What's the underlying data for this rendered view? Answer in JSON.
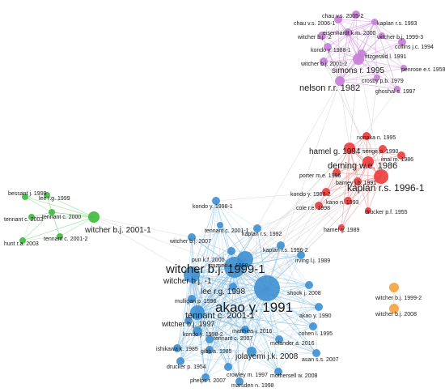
{
  "clusters": {
    "purple": {
      "color": "#c77dd6",
      "edge": "#d9a8e3"
    },
    "red": {
      "color": "#ee3b3b",
      "edge": "#f29a9a"
    },
    "green": {
      "color": "#3dba3d",
      "edge": "#8fdc8f"
    },
    "blue": {
      "color": "#3d8fd1",
      "edge": "#8fc3e8"
    },
    "orange": {
      "color": "#f4a23c",
      "edge": "#f6c98a"
    },
    "bridge": {
      "color": "#bbbbbb",
      "edge": "#cfcfcf"
    }
  },
  "nodes": [
    {
      "id": "chau2005",
      "label": "chau v.s. 2005-2",
      "cluster": "purple"
    },
    {
      "id": "chau2006",
      "label": "chau v.s. 2006-1",
      "cluster": "purple"
    },
    {
      "id": "kaplan1993",
      "label": "kaplan r.s. 1993",
      "cluster": "purple"
    },
    {
      "id": "witcher2p",
      "label": "witcher b.j. -2",
      "cluster": "purple"
    },
    {
      "id": "eisenhardt",
      "label": "eisenhardt k.m. 2000",
      "cluster": "purple"
    },
    {
      "id": "witcher1999_3",
      "label": "witcher b.j. 1999-3",
      "cluster": "purple"
    },
    {
      "id": "collins",
      "label": "collins j.c. 1994",
      "cluster": "purple"
    },
    {
      "id": "kondo1988",
      "label": "kondo y. 1988-1",
      "cluster": "purple"
    },
    {
      "id": "fitzgerald",
      "label": "fitzgerald l. 1991",
      "cluster": "purple"
    },
    {
      "id": "witcher2001_2p",
      "label": "witcher b.j. 2001-2",
      "cluster": "purple"
    },
    {
      "id": "penrose",
      "label": "penrose e.t. 1959",
      "cluster": "purple"
    },
    {
      "id": "simons",
      "label": "simons r. 1995",
      "cluster": "purple"
    },
    {
      "id": "crosby",
      "label": "crosby p.b. 1979",
      "cluster": "purple"
    },
    {
      "id": "nelson",
      "label": "nelson r.r. 1982",
      "cluster": "purple"
    },
    {
      "id": "ghoshal",
      "label": "ghoshal s. 1997",
      "cluster": "purple"
    },
    {
      "id": "nonaka",
      "label": "nonaka n. 1995",
      "cluster": "red"
    },
    {
      "id": "hamel1994",
      "label": "hamel g. 1994",
      "cluster": "red"
    },
    {
      "id": "senge",
      "label": "senge p. 1990",
      "cluster": "red"
    },
    {
      "id": "imai",
      "label": "imai m. 1986",
      "cluster": "red"
    },
    {
      "id": "deming",
      "label": "deming w.e. 1986",
      "cluster": "red"
    },
    {
      "id": "porter",
      "label": "porter m.e. 1996",
      "cluster": "red"
    },
    {
      "id": "kaplan1996",
      "label": "kaplan r.s. 1996-1",
      "cluster": "red"
    },
    {
      "id": "barney",
      "label": "barney j.b. 1991",
      "cluster": "red"
    },
    {
      "id": "kondo1988_2",
      "label": "kondo y. 1988-2",
      "cluster": "red"
    },
    {
      "id": "kano",
      "label": "kano n. 1993",
      "cluster": "red"
    },
    {
      "id": "cole",
      "label": "cole r.e. 1998",
      "cluster": "red"
    },
    {
      "id": "drucker1955",
      "label": "drucker p.f. 1955",
      "cluster": "red"
    },
    {
      "id": "hamel1989",
      "label": "hamel g. 1989",
      "cluster": "red"
    },
    {
      "id": "bessant",
      "label": "bessant j. 1999",
      "cluster": "green"
    },
    {
      "id": "lee1999",
      "label": "lee r.g. 1999",
      "cluster": "green"
    },
    {
      "id": "tennant2003",
      "label": "tennant c. 2003",
      "cluster": "green"
    },
    {
      "id": "tennant2000",
      "label": "tennant c. 2000",
      "cluster": "green"
    },
    {
      "id": "witcher2001_1",
      "label": "witcher b.j. 2001-1",
      "cluster": "green"
    },
    {
      "id": "tennant2001_2",
      "label": "tennant c. 2001-2",
      "cluster": "green"
    },
    {
      "id": "hunt",
      "label": "hunt r.a. 2003",
      "cluster": "green"
    },
    {
      "id": "kondo1998",
      "label": "kondo y. 1998-1",
      "cluster": "blue"
    },
    {
      "id": "witcher2007",
      "label": "witcher b.j. 2007",
      "cluster": "blue"
    },
    {
      "id": "tennant2001_1s",
      "label": "tennant c. 2001-1",
      "cluster": "blue"
    },
    {
      "id": "kaplan1992",
      "label": "kaplan r.s. 1992",
      "cluster": "blue"
    },
    {
      "id": "kaplan1996_2",
      "label": "kaplan r.s. 1996-2",
      "cluster": "blue"
    },
    {
      "id": "pun",
      "label": "pun k.f. 2000",
      "cluster": "blue"
    },
    {
      "id": "irving",
      "label": "irving l.j. 1989",
      "cluster": "blue"
    },
    {
      "id": "mizuno",
      "label": "mizuno s. 1988",
      "cluster": "blue"
    },
    {
      "id": "witcher1999_1",
      "label": "witcher b.j. 1999-1",
      "cluster": "blue"
    },
    {
      "id": "witcher_1",
      "label": "witcher b.j. -1",
      "cluster": "blue"
    },
    {
      "id": "lee1998",
      "label": "lee r.g. 1998",
      "cluster": "blue"
    },
    {
      "id": "shook",
      "label": "shook j. 2008",
      "cluster": "blue"
    },
    {
      "id": "akao1991",
      "label": "akao y. 1991",
      "cluster": "blue"
    },
    {
      "id": "mulligan",
      "label": "mulligan p. 1996",
      "cluster": "blue"
    },
    {
      "id": "akao1990",
      "label": "akao y. 1990",
      "cluster": "blue"
    },
    {
      "id": "tennant2001_1",
      "label": "tennant c. 2001-1",
      "cluster": "blue"
    },
    {
      "id": "witcher1997",
      "label": "witcher b.j. 1997",
      "cluster": "blue"
    },
    {
      "id": "cohen",
      "label": "cohen l. 1995",
      "cluster": "blue"
    },
    {
      "id": "kondo1998_2",
      "label": "kondo y. 1998-2",
      "cluster": "blue"
    },
    {
      "id": "matthias",
      "label": "matthias j. 2016",
      "cluster": "blue"
    },
    {
      "id": "tennant2007",
      "label": "tennant c. 2007",
      "cluster": "blue"
    },
    {
      "id": "melander",
      "label": "melander a. 2016",
      "cluster": "blue"
    },
    {
      "id": "ishikawa",
      "label": "ishikawa k. 1985",
      "cluster": "blue"
    },
    {
      "id": "gibb",
      "label": "gibb a. 1985",
      "cluster": "blue"
    },
    {
      "id": "jolayemi",
      "label": "jolayemi j.k. 2008",
      "cluster": "blue"
    },
    {
      "id": "asan",
      "label": "asan s.s. 2007",
      "cluster": "blue"
    },
    {
      "id": "drucker1954",
      "label": "drucker p. 1954",
      "cluster": "blue"
    },
    {
      "id": "crowley",
      "label": "crowley m. 1997",
      "cluster": "blue"
    },
    {
      "id": "mothersell",
      "label": "mothersell w. 2008",
      "cluster": "blue"
    },
    {
      "id": "phelps",
      "label": "phelps r. 2007",
      "cluster": "blue"
    },
    {
      "id": "marsden",
      "label": "marsden n. 1998",
      "cluster": "blue"
    },
    {
      "id": "witcher1999_2",
      "label": "witcher b.j. 1999-2",
      "cluster": "orange"
    },
    {
      "id": "witcher2008",
      "label": "witcher b.j. 2008",
      "cluster": "orange"
    }
  ]
}
